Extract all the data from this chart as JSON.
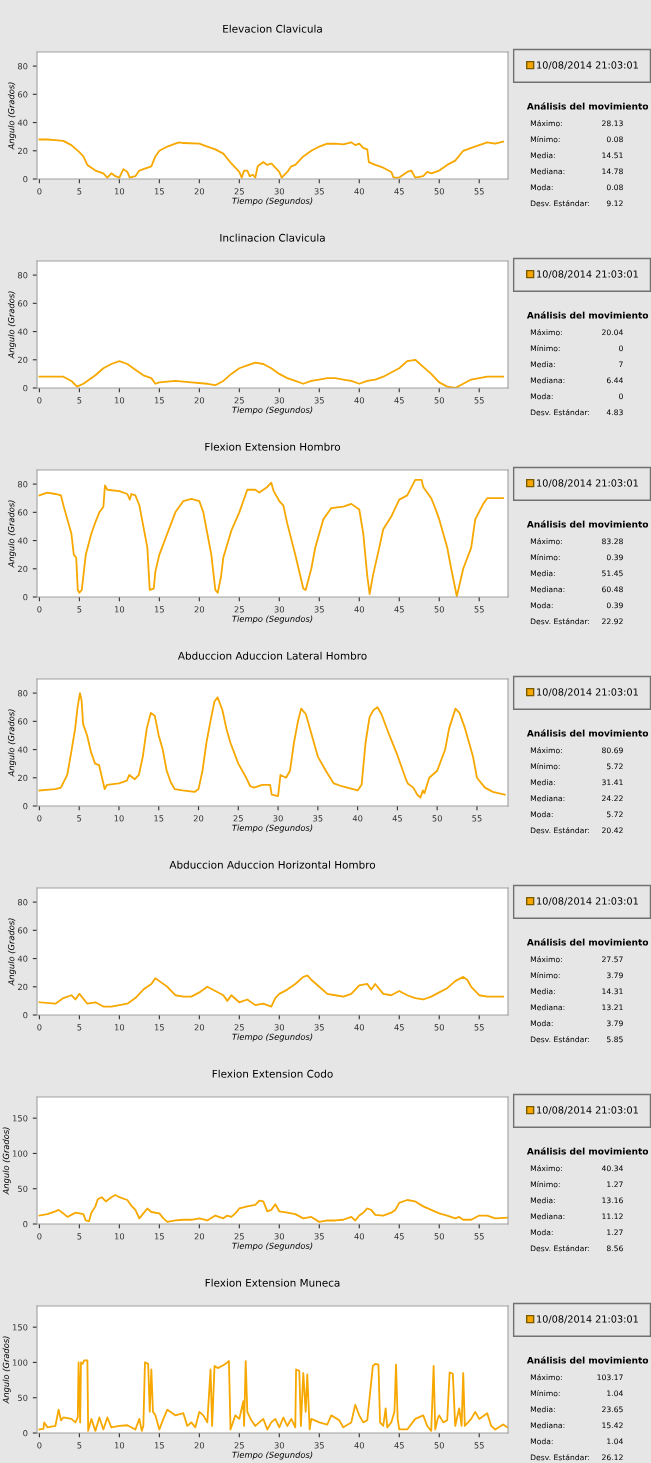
{
  "chart_data": [
    {
      "type": "line",
      "title": "Elevacion Clavicula",
      "xlabel": "Tiempo (Segundos)",
      "ylabel": "Angulo (Grados)",
      "xlim": [
        -0.3,
        58.6
      ],
      "ylim": [
        0,
        90
      ],
      "xticks": [
        0,
        5,
        10,
        15,
        20,
        25,
        30,
        35,
        40,
        45,
        50,
        55
      ],
      "yticks": [
        0,
        20,
        40,
        60,
        80
      ],
      "legend": "right",
      "x": [
        0,
        1,
        2,
        3,
        4,
        5,
        5.5,
        6,
        6.5,
        7,
        8,
        8.5,
        9,
        9.5,
        10,
        10.5,
        11,
        11.3,
        12,
        12.5,
        13,
        14,
        14.5,
        15,
        16,
        17,
        17.5,
        18,
        20,
        21,
        22,
        23,
        24,
        25,
        25.3,
        25.6,
        26,
        26.3,
        26.7,
        27,
        27.3,
        28,
        28.5,
        29,
        29.5,
        30,
        30.3,
        31,
        31.5,
        32,
        33,
        34,
        35,
        36,
        37,
        38,
        39,
        39.5,
        40,
        40.5,
        41,
        41.2,
        42,
        43,
        44,
        44.3,
        45,
        46,
        46.5,
        47,
        48,
        48.5,
        49,
        50,
        51,
        52,
        53,
        54,
        55,
        56,
        57,
        58
      ],
      "series": [
        {
          "name": "10/08/2014 21:03:01",
          "color": "#f7a800",
          "values": [
            28,
            28,
            27.5,
            27,
            24,
            19,
            16,
            10,
            8,
            6,
            4,
            1,
            4,
            2,
            1,
            7,
            5,
            1,
            2,
            6,
            7,
            9,
            16,
            20,
            23,
            25,
            26,
            25.5,
            25,
            23,
            21,
            18,
            11,
            5,
            1,
            6,
            6,
            2,
            3,
            1,
            9,
            12,
            10,
            11,
            8,
            5,
            1,
            5,
            9,
            10,
            16,
            20,
            23,
            25,
            25,
            24.5,
            26,
            24,
            25,
            22,
            21,
            12,
            10,
            8,
            5,
            1,
            1,
            5,
            6,
            1,
            2,
            5,
            4,
            6,
            10,
            13,
            20,
            22,
            24,
            26,
            25,
            26.5
          ]
        }
      ],
      "annotations": [
        "Análisis del movimiento",
        "Máximo:",
        "28.13",
        "Mínimo:",
        "0.08",
        "Media:",
        "14.51",
        "Mediana:",
        "14.78",
        "Moda:",
        "0.08",
        "Desv. Estándar:",
        "9.12"
      ]
    },
    {
      "type": "line",
      "title": "Inclinacion Clavicula",
      "xlabel": "Tiempo (Segundos)",
      "ylabel": "Angulo (Grados)",
      "xlim": [
        -0.3,
        58.6
      ],
      "ylim": [
        0,
        90
      ],
      "xticks": [
        0,
        5,
        10,
        15,
        20,
        25,
        30,
        35,
        40,
        45,
        50,
        55
      ],
      "yticks": [
        0,
        20,
        40,
        60,
        80
      ],
      "legend": "right",
      "x": [
        0,
        3,
        4,
        4.7,
        5.5,
        7,
        8,
        9,
        10,
        11,
        12,
        13,
        14,
        14.5,
        15,
        17,
        19,
        21,
        22,
        23,
        24,
        25,
        26,
        27,
        28,
        29,
        30,
        31,
        32,
        33,
        34,
        35,
        36,
        37,
        38,
        39,
        40,
        41,
        42,
        43,
        44,
        45,
        46,
        47,
        48,
        49,
        50,
        51,
        52,
        53,
        54,
        56,
        58
      ],
      "series": [
        {
          "name": "10/08/2014 21:03:01",
          "color": "#f7a800",
          "values": [
            8,
            8,
            5,
            1,
            3,
            9,
            14,
            17,
            19,
            17,
            13,
            9,
            7,
            3,
            4,
            5,
            4,
            3,
            2,
            5,
            10,
            14,
            16,
            18,
            17,
            14,
            10,
            7,
            5,
            3,
            5,
            6,
            7,
            7,
            6,
            5,
            3,
            5,
            6,
            8,
            11,
            14,
            19,
            20,
            15,
            10,
            4,
            1,
            0,
            3,
            6,
            8,
            8
          ]
        }
      ],
      "annotations": [
        "Análisis del movimiento",
        "Máximo:",
        "20.04",
        "Mínimo:",
        "0",
        "Media:",
        "7",
        "Mediana:",
        "6.44",
        "Moda:",
        "0",
        "Desv. Estándar:",
        "4.83"
      ]
    },
    {
      "type": "line",
      "title": "Flexion Extension Hombro",
      "xlabel": "Tiempo (Segundos)",
      "ylabel": "Angulo (Grados)",
      "xlim": [
        -0.3,
        58.6
      ],
      "ylim": [
        0,
        90
      ],
      "xticks": [
        0,
        5,
        10,
        15,
        20,
        25,
        30,
        35,
        40,
        45,
        50,
        55
      ],
      "yticks": [
        0,
        20,
        40,
        60,
        80
      ],
      "legend": "right",
      "x": [
        0,
        1,
        2,
        2.7,
        3,
        3.5,
        4,
        4.3,
        4.6,
        4.8,
        5,
        5.3,
        5.5,
        5.8,
        6.5,
        7,
        7.5,
        8,
        8.2,
        8.5,
        10,
        11,
        11.3,
        11.5,
        12,
        12.5,
        13,
        13.5,
        13.8,
        14.3,
        14.5,
        15,
        16,
        17,
        18,
        19,
        20,
        20.5,
        21,
        21.5,
        22,
        22.3,
        22.7,
        23,
        24,
        25,
        26,
        27,
        27.5,
        28.5,
        29,
        29.3,
        30,
        30.5,
        31,
        32,
        33,
        33.3,
        34,
        34.5,
        35.5,
        36.5,
        38,
        39,
        40,
        40.5,
        41,
        41.3,
        41.7,
        42.5,
        43,
        44,
        45,
        46,
        47,
        47.8,
        48,
        49,
        49.5,
        50,
        51,
        51.5,
        52.2,
        53,
        54,
        54.5,
        55.5,
        56,
        58
      ],
      "series": [
        {
          "name": "10/08/2014 21:03:01",
          "color": "#f7a800",
          "values": [
            72,
            74,
            73,
            72,
            65,
            55,
            45,
            30,
            28,
            5,
            3,
            5,
            15,
            30,
            45,
            53,
            60,
            64,
            79,
            76,
            75,
            73,
            69,
            73,
            72,
            65,
            50,
            35,
            5,
            6,
            18,
            30,
            45,
            60,
            68,
            69.5,
            68,
            60,
            45,
            30,
            5,
            3,
            14,
            28,
            47,
            60,
            76,
            76,
            74,
            78,
            81,
            75,
            68,
            65,
            52,
            30,
            6,
            5,
            20,
            35,
            55,
            63,
            64,
            66,
            62,
            45,
            15,
            2,
            15,
            35,
            48,
            57,
            69,
            72,
            83,
            83,
            78,
            70,
            63,
            55,
            35,
            20,
            0.5,
            20,
            35,
            55,
            66,
            70,
            70
          ]
        }
      ],
      "annotations": [
        "Análisis del movimiento",
        "Máximo:",
        "83.28",
        "Mínimo:",
        "0.39",
        "Media:",
        "51.45",
        "Mediana:",
        "60.48",
        "Moda:",
        "0.39",
        "Desv. Estándar:",
        "22.92"
      ]
    },
    {
      "type": "line",
      "title": "Abduccion Aduccion Lateral Hombro",
      "xlabel": "Tiempo (Segundos)",
      "ylabel": "Angulo (Grados)",
      "xlim": [
        -0.3,
        58.9
      ],
      "ylim": [
        0,
        90
      ],
      "xticks": [
        0,
        5,
        10,
        15,
        20,
        25,
        30,
        35,
        40,
        45,
        50,
        55
      ],
      "yticks": [
        0,
        20,
        40,
        60,
        80
      ],
      "legend": "right",
      "x": [
        0,
        2,
        2.7,
        3.5,
        4,
        4.5,
        4.8,
        5.1,
        5.3,
        5.5,
        6,
        6.5,
        7,
        7.5,
        8,
        8.2,
        8.5,
        10,
        11,
        11.3,
        12,
        12.5,
        13,
        13.5,
        14,
        14.5,
        15,
        15.5,
        16,
        16.5,
        17,
        18,
        19.5,
        20,
        20.5,
        21,
        21.5,
        22,
        22.4,
        23,
        23.5,
        24,
        25,
        26,
        26.5,
        27,
        28,
        29,
        29.2,
        30,
        30.3,
        31,
        31.5,
        32,
        32.5,
        32.9,
        33.5,
        34,
        34.5,
        35,
        36,
        37,
        38,
        40,
        40.5,
        41,
        41.5,
        42,
        42.5,
        43,
        44,
        45,
        45.5,
        46,
        46.3,
        47,
        47.5,
        47.9,
        48.2,
        48.4,
        49,
        50,
        51,
        51.5,
        52.3,
        52.8,
        53.5,
        54,
        54.5,
        55,
        56,
        57,
        58.5
      ],
      "series": [
        {
          "name": "10/08/2014 21:03:01",
          "color": "#f7a800",
          "values": [
            11,
            12,
            13,
            22,
            38,
            55,
            70,
            80,
            75,
            58,
            50,
            38,
            30,
            29,
            17,
            12,
            15,
            16,
            18,
            22,
            19,
            22,
            35,
            55,
            66,
            64,
            50,
            40,
            25,
            17,
            12,
            11,
            10,
            12,
            25,
            45,
            60,
            74,
            77,
            68,
            55,
            45,
            30,
            20,
            14,
            13,
            15,
            15,
            8,
            7,
            22,
            20,
            25,
            45,
            60,
            69,
            65,
            55,
            45,
            35,
            25,
            16,
            14,
            11,
            15,
            45,
            63,
            68,
            70,
            65,
            50,
            36,
            28,
            20,
            16,
            13,
            8,
            6,
            11,
            9,
            20,
            25,
            40,
            55,
            69,
            66,
            55,
            45,
            35,
            20,
            13,
            10,
            8
          ]
        }
      ],
      "annotations": [
        "Análisis del movimiento",
        "Máximo:",
        "80.69",
        "Mínimo:",
        "5.72",
        "Media:",
        "31.41",
        "Mediana:",
        "24.22",
        "Moda:",
        "5.72",
        "Desv. Estándar:",
        "20.42"
      ]
    },
    {
      "type": "line",
      "title": "Abduccion Aduccion Horizontal Hombro",
      "xlabel": "Tiempo (Segundos)",
      "ylabel": "Angulo (Grados)",
      "xlim": [
        -0.3,
        58.6
      ],
      "ylim": [
        0,
        90
      ],
      "xticks": [
        0,
        5,
        10,
        15,
        20,
        25,
        30,
        35,
        40,
        45,
        50,
        55
      ],
      "yticks": [
        0,
        20,
        40,
        60,
        80
      ],
      "legend": "right",
      "x": [
        0,
        2,
        3,
        4,
        4.5,
        5,
        6,
        7,
        8,
        9,
        10,
        11,
        12,
        13,
        14,
        14.5,
        15,
        16,
        17,
        18,
        19,
        20,
        21,
        22,
        23,
        23.5,
        24,
        25,
        26,
        27,
        28,
        29,
        29.5,
        30,
        31,
        32,
        33,
        33.5,
        34,
        35,
        36,
        37,
        38,
        39,
        40,
        41,
        41.5,
        42,
        43,
        44,
        45,
        46,
        47,
        48,
        49,
        50,
        51,
        52,
        53,
        53.5,
        54,
        55,
        56,
        58
      ],
      "series": [
        {
          "name": "10/08/2014 21:03:01",
          "color": "#f7a800",
          "values": [
            9,
            8,
            12,
            14,
            11,
            15,
            8,
            9,
            6,
            6,
            7,
            8,
            12,
            18,
            22,
            26,
            24,
            20,
            14,
            13,
            13,
            16,
            20,
            17,
            14,
            10,
            14,
            9,
            11,
            7,
            8,
            6,
            12,
            15,
            18,
            22,
            27,
            28,
            25,
            20,
            15,
            14,
            13,
            15,
            21,
            22,
            18,
            22,
            15,
            14,
            17,
            14,
            12,
            11,
            13,
            16,
            19,
            24,
            27,
            25,
            20,
            14,
            13,
            13
          ]
        }
      ],
      "annotations": [
        "Análisis del movimiento",
        "Máximo:",
        "27.57",
        "Mínimo:",
        "3.79",
        "Media:",
        "14.31",
        "Mediana:",
        "13.21",
        "Moda:",
        "3.79",
        "Desv. Estándar:",
        "5.85"
      ]
    },
    {
      "type": "line",
      "title": "Flexion Extension Codo",
      "xlabel": "Tiempo (Segundos)",
      "ylabel": "Angulo (Grados)",
      "xlim": [
        -0.3,
        58.6
      ],
      "ylim": [
        0,
        180
      ],
      "xticks": [
        0,
        5,
        10,
        15,
        20,
        25,
        30,
        35,
        40,
        45,
        50,
        55
      ],
      "yticks": [
        0,
        50,
        100,
        150
      ],
      "legend": "right",
      "x": [
        0,
        1,
        2,
        2.4,
        3,
        3.5,
        4,
        4.5,
        5,
        5.5,
        5.8,
        6.2,
        6.5,
        7,
        7.3,
        7.8,
        8.3,
        9,
        9.5,
        10,
        11,
        11.5,
        12,
        12.5,
        13,
        13.5,
        14,
        15,
        15.5,
        16,
        17,
        18,
        19,
        20,
        21,
        22,
        23,
        23.5,
        24,
        24.5,
        25,
        26,
        27,
        27.5,
        28,
        28.5,
        29,
        29.5,
        30,
        31,
        32,
        33,
        34,
        35,
        36,
        37,
        38,
        39,
        39.5,
        40,
        40.5,
        41,
        41.5,
        42,
        43,
        44,
        44.5,
        45,
        46,
        47,
        48,
        49,
        50,
        51,
        52,
        52.5,
        53,
        54,
        55,
        56,
        57,
        58.5
      ],
      "series": [
        {
          "name": "10/08/2014 21:03:01",
          "color": "#f7a800",
          "values": [
            12,
            14,
            18,
            20,
            15,
            10,
            13,
            16,
            15,
            14,
            5,
            4,
            16,
            25,
            35,
            38,
            32,
            38,
            41,
            38,
            34,
            26,
            20,
            8,
            15,
            22,
            17,
            15,
            8,
            3,
            5,
            6,
            6,
            8,
            5,
            12,
            8,
            12,
            10,
            15,
            22,
            25,
            27,
            33,
            32,
            18,
            20,
            28,
            18,
            16,
            14,
            8,
            10,
            3,
            5,
            5,
            6,
            10,
            5,
            12,
            16,
            22,
            20,
            13,
            12,
            16,
            20,
            30,
            34,
            32,
            25,
            20,
            15,
            12,
            8,
            10,
            6,
            6,
            12,
            12,
            8,
            9
          ]
        }
      ],
      "annotations": [
        "Análisis del movimiento",
        "Máximo:",
        "40.34",
        "Mínimo:",
        "1.27",
        "Media:",
        "13.16",
        "Mediana:",
        "11.12",
        "Moda:",
        "1.27",
        "Desv. Estándar:",
        "8.56"
      ]
    },
    {
      "type": "line",
      "title": "Flexion Extension Muneca",
      "xlabel": "Tiempo (Segundos)",
      "ylabel": "Angulo (Grados)",
      "xlim": [
        -0.3,
        58.6
      ],
      "ylim": [
        0,
        180
      ],
      "xticks": [
        0,
        5,
        10,
        15,
        20,
        25,
        30,
        35,
        40,
        45,
        50,
        55
      ],
      "yticks": [
        0,
        50,
        100,
        150
      ],
      "legend": "right",
      "x": [
        0,
        0.5,
        0.6,
        1,
        2,
        2.4,
        2.7,
        3,
        4,
        4.5,
        4.8,
        4.9,
        5.1,
        5.2,
        5.4,
        5.6,
        6,
        6.1,
        6.5,
        7,
        7.5,
        8,
        8.5,
        9,
        10,
        11,
        12,
        12.5,
        12.8,
        13,
        13.2,
        13.6,
        13.8,
        14,
        14.2,
        14.5,
        15,
        15.5,
        16,
        17,
        18,
        18.5,
        19,
        19.5,
        20,
        20.5,
        21,
        21.4,
        21.6,
        21.9,
        22.3,
        23,
        23.5,
        23.7,
        23.9,
        24.5,
        25,
        25.5,
        25.6,
        25.8,
        26,
        26.5,
        27,
        28,
        28.5,
        29,
        29.5,
        30,
        30.5,
        31,
        31.5,
        32,
        32.1,
        32.5,
        32.7,
        33,
        33.3,
        33.5,
        33.8,
        34,
        35,
        36,
        36.5,
        37.5,
        38,
        39,
        39.5,
        40,
        40.5,
        41,
        41.7,
        42,
        42.4,
        42.6,
        43,
        43.3,
        43.5,
        44,
        44.4,
        44.6,
        44.8,
        45,
        46,
        47,
        48,
        48.5,
        49,
        49.3,
        49.5,
        49.8,
        50,
        50.5,
        51,
        51.3,
        51.7,
        52,
        52.5,
        52.8,
        53,
        53.2,
        54,
        54.5,
        55,
        56,
        56.5,
        57,
        58,
        58.5
      ],
      "series": [
        {
          "name": "10/08/2014 21:03:01",
          "color": "#f7a800",
          "values": [
            5,
            6,
            15,
            8,
            10,
            33,
            18,
            22,
            20,
            15,
            22,
            100,
            15,
            100,
            98,
            103,
            103,
            3,
            20,
            3,
            22,
            5,
            22,
            8,
            10,
            11,
            5,
            20,
            3,
            10,
            100,
            98,
            30,
            90,
            30,
            25,
            5,
            20,
            33,
            25,
            28,
            10,
            15,
            8,
            30,
            25,
            15,
            90,
            10,
            95,
            92,
            96,
            100,
            102,
            5,
            25,
            20,
            45,
            10,
            102,
            30,
            18,
            10,
            20,
            5,
            15,
            20,
            8,
            22,
            10,
            20,
            8,
            90,
            88,
            10,
            85,
            30,
            83,
            5,
            20,
            15,
            12,
            25,
            18,
            8,
            15,
            40,
            25,
            15,
            18,
            95,
            98,
            97,
            15,
            10,
            35,
            8,
            15,
            30,
            97,
            20,
            5,
            5,
            20,
            25,
            10,
            3,
            95,
            5,
            20,
            25,
            15,
            18,
            86,
            84,
            10,
            35,
            10,
            85,
            10,
            20,
            30,
            20,
            28,
            10,
            5,
            12,
            8
          ]
        }
      ],
      "annotations": [
        "Análisis del movimiento",
        "Máximo:",
        "103.17",
        "Mínimo:",
        "1.04",
        "Media:",
        "23.65",
        "Mediana:",
        "15.42",
        "Moda:",
        "1.04",
        "Desv. Estándar:",
        "26.12"
      ]
    }
  ]
}
